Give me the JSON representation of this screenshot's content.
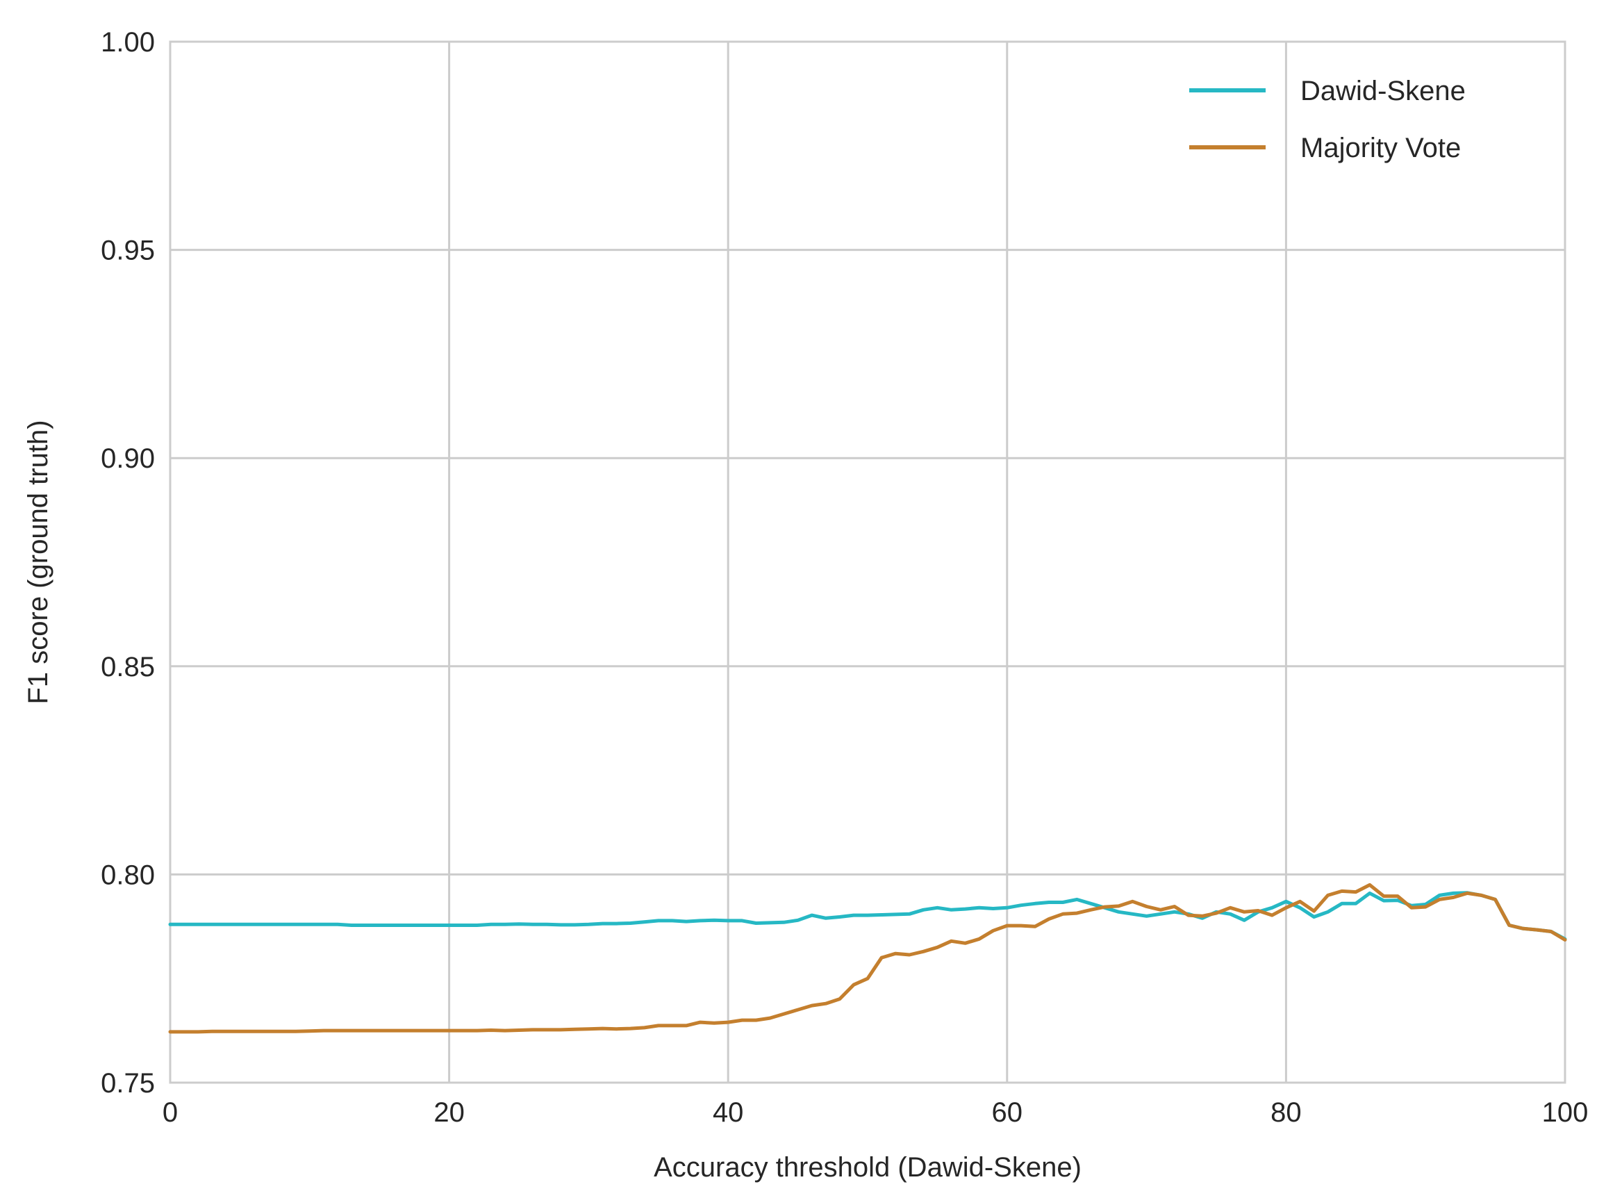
{
  "chart_data": {
    "type": "line",
    "xlabel": "Accuracy threshold (Dawid-Skene)",
    "ylabel": "F1 score (ground truth)",
    "xlim": [
      0,
      100
    ],
    "ylim": [
      0.75,
      1.0
    ],
    "x_ticks": [
      0,
      20,
      40,
      60,
      80,
      100
    ],
    "x_tick_labels": [
      "0",
      "20",
      "40",
      "60",
      "80",
      "100"
    ],
    "y_ticks": [
      0.75,
      0.8,
      0.85,
      0.9,
      0.95,
      1.0
    ],
    "y_tick_labels": [
      "0.75",
      "0.80",
      "0.85",
      "0.90",
      "0.95",
      "1.00"
    ],
    "grid": true,
    "legend_position": "top-right",
    "series": [
      {
        "name": "Dawid-Skene",
        "color": "#26b8c4",
        "x": [
          0,
          1,
          2,
          3,
          4,
          5,
          6,
          7,
          8,
          9,
          10,
          11,
          12,
          13,
          14,
          15,
          16,
          17,
          18,
          19,
          20,
          21,
          22,
          23,
          24,
          25,
          26,
          27,
          28,
          29,
          30,
          31,
          32,
          33,
          34,
          35,
          36,
          37,
          38,
          39,
          40,
          41,
          42,
          43,
          44,
          45,
          46,
          47,
          48,
          49,
          50,
          51,
          52,
          53,
          54,
          55,
          56,
          57,
          58,
          59,
          60,
          61,
          62,
          63,
          64,
          65,
          66,
          67,
          68,
          69,
          70,
          71,
          72,
          73,
          74,
          75,
          76,
          77,
          78,
          79,
          80,
          81,
          82,
          83,
          84,
          85,
          86,
          87,
          88,
          89,
          90,
          91,
          92,
          93,
          94,
          95,
          96,
          97,
          98,
          99,
          100
        ],
        "y": [
          0.788,
          0.788,
          0.788,
          0.788,
          0.788,
          0.788,
          0.788,
          0.788,
          0.788,
          0.788,
          0.788,
          0.788,
          0.788,
          0.7878,
          0.7878,
          0.7878,
          0.7878,
          0.7878,
          0.7878,
          0.7878,
          0.7878,
          0.7878,
          0.7878,
          0.788,
          0.788,
          0.7881,
          0.788,
          0.788,
          0.7879,
          0.7879,
          0.788,
          0.7882,
          0.7882,
          0.7883,
          0.7886,
          0.7889,
          0.7889,
          0.7887,
          0.7889,
          0.789,
          0.7889,
          0.7889,
          0.7883,
          0.7884,
          0.7885,
          0.789,
          0.7902,
          0.7895,
          0.7898,
          0.7902,
          0.7902,
          0.7903,
          0.7904,
          0.7905,
          0.7915,
          0.792,
          0.7915,
          0.7917,
          0.792,
          0.7918,
          0.792,
          0.7926,
          0.793,
          0.7933,
          0.7933,
          0.794,
          0.793,
          0.792,
          0.791,
          0.7905,
          0.79,
          0.7905,
          0.791,
          0.7905,
          0.7895,
          0.791,
          0.7905,
          0.789,
          0.791,
          0.792,
          0.7935,
          0.792,
          0.7898,
          0.791,
          0.793,
          0.793,
          0.7955,
          0.7937,
          0.7938,
          0.7925,
          0.7928,
          0.795,
          0.7955,
          0.7956,
          0.795,
          0.794,
          0.7878,
          0.787,
          0.7867,
          0.7863,
          0.7845
        ]
      },
      {
        "name": "Majority Vote",
        "color": "#c47f2e",
        "x": [
          0,
          1,
          2,
          3,
          4,
          5,
          6,
          7,
          8,
          9,
          10,
          11,
          12,
          13,
          14,
          15,
          16,
          17,
          18,
          19,
          20,
          21,
          22,
          23,
          24,
          25,
          26,
          27,
          28,
          29,
          30,
          31,
          32,
          33,
          34,
          35,
          36,
          37,
          38,
          39,
          40,
          41,
          42,
          43,
          44,
          45,
          46,
          47,
          48,
          49,
          50,
          51,
          52,
          53,
          54,
          55,
          56,
          57,
          58,
          59,
          60,
          61,
          62,
          63,
          64,
          65,
          66,
          67,
          68,
          69,
          70,
          71,
          72,
          73,
          74,
          75,
          76,
          77,
          78,
          79,
          80,
          81,
          82,
          83,
          84,
          85,
          86,
          87,
          88,
          89,
          90,
          91,
          92,
          93,
          94,
          95,
          96,
          97,
          98,
          99,
          100
        ],
        "y": [
          0.7622,
          0.7622,
          0.7622,
          0.7623,
          0.7623,
          0.7623,
          0.7623,
          0.7623,
          0.7623,
          0.7623,
          0.7624,
          0.7625,
          0.7625,
          0.7625,
          0.7625,
          0.7625,
          0.7625,
          0.7625,
          0.7625,
          0.7625,
          0.7625,
          0.7625,
          0.7625,
          0.7626,
          0.7625,
          0.7626,
          0.7627,
          0.7627,
          0.7627,
          0.7628,
          0.7629,
          0.763,
          0.7629,
          0.763,
          0.7632,
          0.7637,
          0.7637,
          0.7637,
          0.7645,
          0.7643,
          0.7645,
          0.765,
          0.765,
          0.7655,
          0.7665,
          0.7675,
          0.7685,
          0.769,
          0.7701,
          0.7735,
          0.775,
          0.78,
          0.781,
          0.7807,
          0.7815,
          0.7825,
          0.784,
          0.7835,
          0.7845,
          0.7865,
          0.7877,
          0.7877,
          0.7875,
          0.7893,
          0.7905,
          0.7907,
          0.7915,
          0.7922,
          0.7924,
          0.7935,
          0.7923,
          0.7915,
          0.7923,
          0.7902,
          0.79,
          0.7907,
          0.792,
          0.791,
          0.7913,
          0.7902,
          0.792,
          0.7935,
          0.7912,
          0.795,
          0.796,
          0.7958,
          0.7975,
          0.7948,
          0.7948,
          0.792,
          0.7922,
          0.794,
          0.7945,
          0.7955,
          0.795,
          0.794,
          0.7878,
          0.787,
          0.7867,
          0.7863,
          0.7843
        ]
      }
    ]
  }
}
